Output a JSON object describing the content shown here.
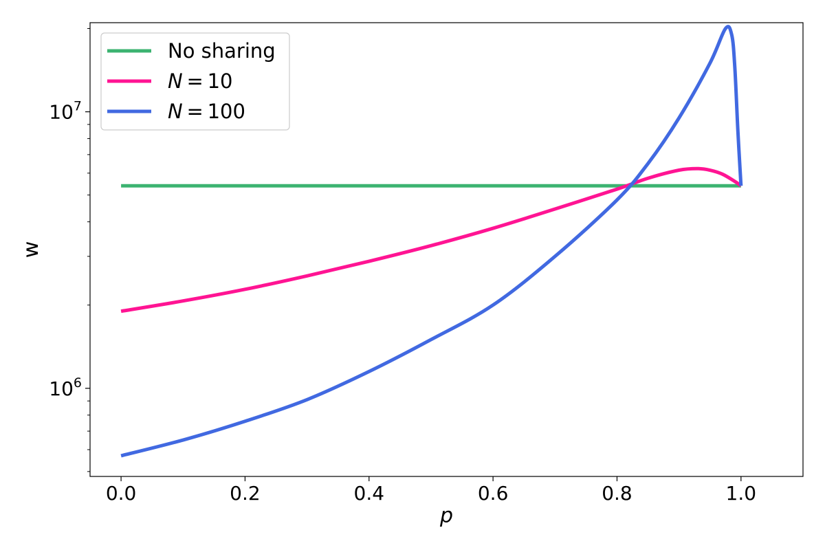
{
  "chart_data": {
    "type": "line",
    "title": "",
    "xlabel": "p",
    "ylabel": "w",
    "yscale": "log",
    "xlim": [
      -0.05,
      1.1
    ],
    "ylim": [
      480000,
      21000000
    ],
    "xticks": [
      0.0,
      0.2,
      0.4,
      0.6,
      0.8,
      1.0
    ],
    "xtick_labels": [
      "0.0",
      "0.2",
      "0.4",
      "0.6",
      "0.8",
      "1.0"
    ],
    "yticks_major": [
      {
        "value": 1000000,
        "base": "10",
        "exponent": "6"
      },
      {
        "value": 10000000,
        "base": "10",
        "exponent": "7"
      }
    ],
    "grid": false,
    "legend_position": "top-left",
    "series": [
      {
        "name": "No sharing",
        "color": "#3cb371",
        "x": [
          0.0,
          1.0
        ],
        "y": [
          5400000,
          5400000
        ]
      },
      {
        "name": "N = 10",
        "color": "#ff1493",
        "x": [
          0.0,
          0.1,
          0.2,
          0.3,
          0.4,
          0.5,
          0.6,
          0.7,
          0.8,
          0.85,
          0.9,
          0.93,
          0.95,
          0.97,
          0.99,
          1.0
        ],
        "y": [
          1900000,
          2070000,
          2280000,
          2550000,
          2880000,
          3280000,
          3790000,
          4450000,
          5250000,
          5750000,
          6150000,
          6230000,
          6150000,
          5950000,
          5600000,
          5400000
        ]
      },
      {
        "name": "N = 100",
        "color": "#4169e1",
        "x": [
          0.0,
          0.1,
          0.2,
          0.3,
          0.4,
          0.5,
          0.6,
          0.7,
          0.8,
          0.85,
          0.9,
          0.95,
          0.975,
          0.985,
          0.99,
          0.995,
          1.0
        ],
        "y": [
          570000,
          650000,
          760000,
          910000,
          1150000,
          1500000,
          2000000,
          3000000,
          4800000,
          6500000,
          9500000,
          15000000,
          20000000,
          19000000,
          14500000,
          8500000,
          5400000
        ]
      }
    ]
  }
}
